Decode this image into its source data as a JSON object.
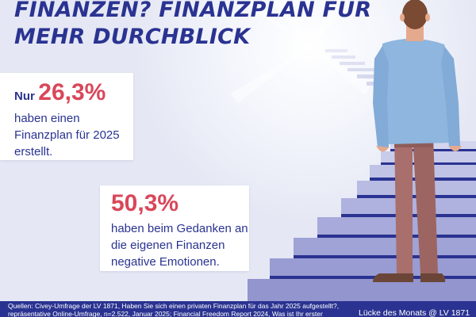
{
  "headline": {
    "line1": "FINANZEN? FINANZPLAN FÜR",
    "line2": "MEHR DURCHBLICK"
  },
  "stat1": {
    "prefix": "Nur",
    "percent": "26,3%",
    "lines": [
      "haben einen",
      "Finanzplan für 2025",
      "erstellt."
    ]
  },
  "stat2": {
    "percent": "50,3%",
    "lines": [
      "haben beim Gedanken an",
      "die eigenen Finanzen",
      "negative Emotionen."
    ]
  },
  "footer": {
    "source_line1": "Quellen: Civey-Umfrage der LV 1871, Haben Sie sich einen privaten Finanzplan für das Jahr 2025 aufgestellt?,",
    "source_line2": "repräsentative Online-Umfrage, n=2.522, Januar 2025; Financial Freedom Report 2024, Was ist Ihr erster",
    "brand": "Lücke des Monats @ LV 1871"
  },
  "colors": {
    "navy": "#2a3391",
    "accent": "#d9475a",
    "stair_top": "#c9cbea",
    "stair_edge": "#2a3391"
  },
  "icons": {
    "illustration": "man-on-staircase-illustration"
  }
}
